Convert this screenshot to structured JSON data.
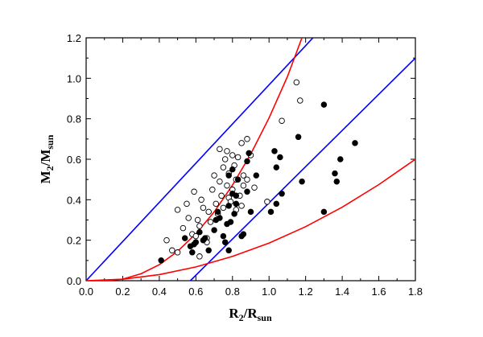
{
  "chart_data": {
    "type": "scatter",
    "xlabel": "R",
    "xlabel_sub": "2",
    "xlabel_rest": "/R",
    "xlabel_sub2": "sun",
    "ylabel": "M",
    "ylabel_sub": "2",
    "ylabel_rest": "/M",
    "ylabel_sub2": "sun",
    "xlim": [
      0.0,
      1.8
    ],
    "ylim": [
      0.0,
      1.2
    ],
    "xticks": [
      "0.0",
      "0.2",
      "0.4",
      "0.6",
      "0.8",
      "1.0",
      "1.2",
      "1.4",
      "1.6",
      "1.8"
    ],
    "yticks": [
      "0.0",
      "0.2",
      "0.4",
      "0.6",
      "0.8",
      "1.0",
      "1.2"
    ],
    "grid": false,
    "colors": {
      "blue_line": "#0000ff",
      "red_line": "#ff0000",
      "points": "#000000"
    },
    "lines": [
      {
        "color": "blue",
        "points": [
          [
            0.0,
            0.0
          ],
          [
            1.24,
            1.2
          ]
        ]
      },
      {
        "color": "blue",
        "points": [
          [
            0.57,
            0.0
          ],
          [
            1.8,
            1.1
          ]
        ]
      },
      {
        "color": "red",
        "points": [
          [
            0.1,
            0.0
          ],
          [
            0.2,
            0.008
          ],
          [
            0.3,
            0.034
          ],
          [
            0.4,
            0.079
          ],
          [
            0.5,
            0.145
          ],
          [
            0.6,
            0.232
          ],
          [
            0.7,
            0.34
          ],
          [
            0.8,
            0.472
          ],
          [
            0.9,
            0.626
          ],
          [
            1.0,
            0.804
          ],
          [
            1.1,
            1.007
          ],
          [
            1.18,
            1.2
          ]
        ]
      },
      {
        "color": "red",
        "points": [
          [
            0.0,
            0.0
          ],
          [
            0.2,
            0.007
          ],
          [
            0.4,
            0.03
          ],
          [
            0.6,
            0.068
          ],
          [
            0.8,
            0.12
          ],
          [
            1.0,
            0.186
          ],
          [
            1.2,
            0.267
          ],
          [
            1.4,
            0.363
          ],
          [
            1.6,
            0.475
          ],
          [
            1.8,
            0.6
          ]
        ]
      }
    ],
    "series": [
      {
        "marker": "open-circle",
        "points": [
          [
            0.44,
            0.2
          ],
          [
            0.47,
            0.15
          ],
          [
            0.5,
            0.14
          ],
          [
            0.5,
            0.35
          ],
          [
            0.53,
            0.26
          ],
          [
            0.55,
            0.38
          ],
          [
            0.56,
            0.31
          ],
          [
            0.58,
            0.23
          ],
          [
            0.59,
            0.44
          ],
          [
            0.6,
            0.22
          ],
          [
            0.61,
            0.3
          ],
          [
            0.62,
            0.27
          ],
          [
            0.63,
            0.4
          ],
          [
            0.64,
            0.36
          ],
          [
            0.66,
            0.21
          ],
          [
            0.67,
            0.34
          ],
          [
            0.68,
            0.29
          ],
          [
            0.69,
            0.45
          ],
          [
            0.7,
            0.52
          ],
          [
            0.71,
            0.38
          ],
          [
            0.72,
            0.33
          ],
          [
            0.73,
            0.65
          ],
          [
            0.73,
            0.49
          ],
          [
            0.74,
            0.42
          ],
          [
            0.75,
            0.36
          ],
          [
            0.75,
            0.56
          ],
          [
            0.76,
            0.6
          ],
          [
            0.77,
            0.47
          ],
          [
            0.77,
            0.64
          ],
          [
            0.78,
            0.41
          ],
          [
            0.78,
            0.53
          ],
          [
            0.79,
            0.39
          ],
          [
            0.8,
            0.62
          ],
          [
            0.8,
            0.45
          ],
          [
            0.81,
            0.57
          ],
          [
            0.82,
            0.35
          ],
          [
            0.82,
            0.5
          ],
          [
            0.83,
            0.61
          ],
          [
            0.84,
            0.42
          ],
          [
            0.85,
            0.37
          ],
          [
            0.85,
            0.68
          ],
          [
            0.86,
            0.52
          ],
          [
            0.86,
            0.47
          ],
          [
            0.88,
            0.7
          ],
          [
            0.88,
            0.5
          ],
          [
            0.9,
            0.62
          ],
          [
            0.92,
            0.46
          ],
          [
            0.99,
            0.39
          ],
          [
            1.07,
            0.79
          ],
          [
            1.15,
            0.98
          ],
          [
            1.17,
            0.89
          ],
          [
            0.62,
            0.12
          ],
          [
            0.66,
            0.19
          ]
        ]
      },
      {
        "marker": "filled-circle",
        "points": [
          [
            0.41,
            0.1
          ],
          [
            0.54,
            0.21
          ],
          [
            0.57,
            0.17
          ],
          [
            0.58,
            0.14
          ],
          [
            0.59,
            0.18
          ],
          [
            0.6,
            0.19
          ],
          [
            0.62,
            0.24
          ],
          [
            0.64,
            0.2
          ],
          [
            0.65,
            0.21
          ],
          [
            0.67,
            0.15
          ],
          [
            0.7,
            0.25
          ],
          [
            0.71,
            0.3
          ],
          [
            0.72,
            0.34
          ],
          [
            0.73,
            0.31
          ],
          [
            0.75,
            0.22
          ],
          [
            0.76,
            0.19
          ],
          [
            0.77,
            0.28
          ],
          [
            0.78,
            0.52
          ],
          [
            0.78,
            0.37
          ],
          [
            0.79,
            0.29
          ],
          [
            0.8,
            0.43
          ],
          [
            0.8,
            0.55
          ],
          [
            0.81,
            0.33
          ],
          [
            0.82,
            0.42
          ],
          [
            0.82,
            0.38
          ],
          [
            0.83,
            0.5
          ],
          [
            0.85,
            0.22
          ],
          [
            0.86,
            0.23
          ],
          [
            0.88,
            0.44
          ],
          [
            0.88,
            0.59
          ],
          [
            0.89,
            0.63
          ],
          [
            0.9,
            0.34
          ],
          [
            0.93,
            0.52
          ],
          [
            0.78,
            0.15
          ],
          [
            1.01,
            0.34
          ],
          [
            1.03,
            0.64
          ],
          [
            1.04,
            0.38
          ],
          [
            1.04,
            0.56
          ],
          [
            1.06,
            0.61
          ],
          [
            1.07,
            0.43
          ],
          [
            1.16,
            0.71
          ],
          [
            1.18,
            0.49
          ],
          [
            1.3,
            0.87
          ],
          [
            1.3,
            0.34
          ],
          [
            1.36,
            0.53
          ],
          [
            1.37,
            0.49
          ],
          [
            1.39,
            0.6
          ],
          [
            1.47,
            0.68
          ]
        ]
      }
    ]
  }
}
